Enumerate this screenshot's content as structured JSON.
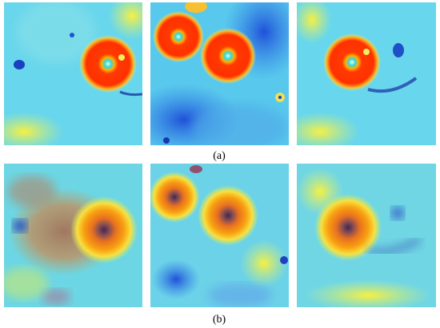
{
  "figure": {
    "labels": [
      "(a)",
      "(b)"
    ]
  }
}
